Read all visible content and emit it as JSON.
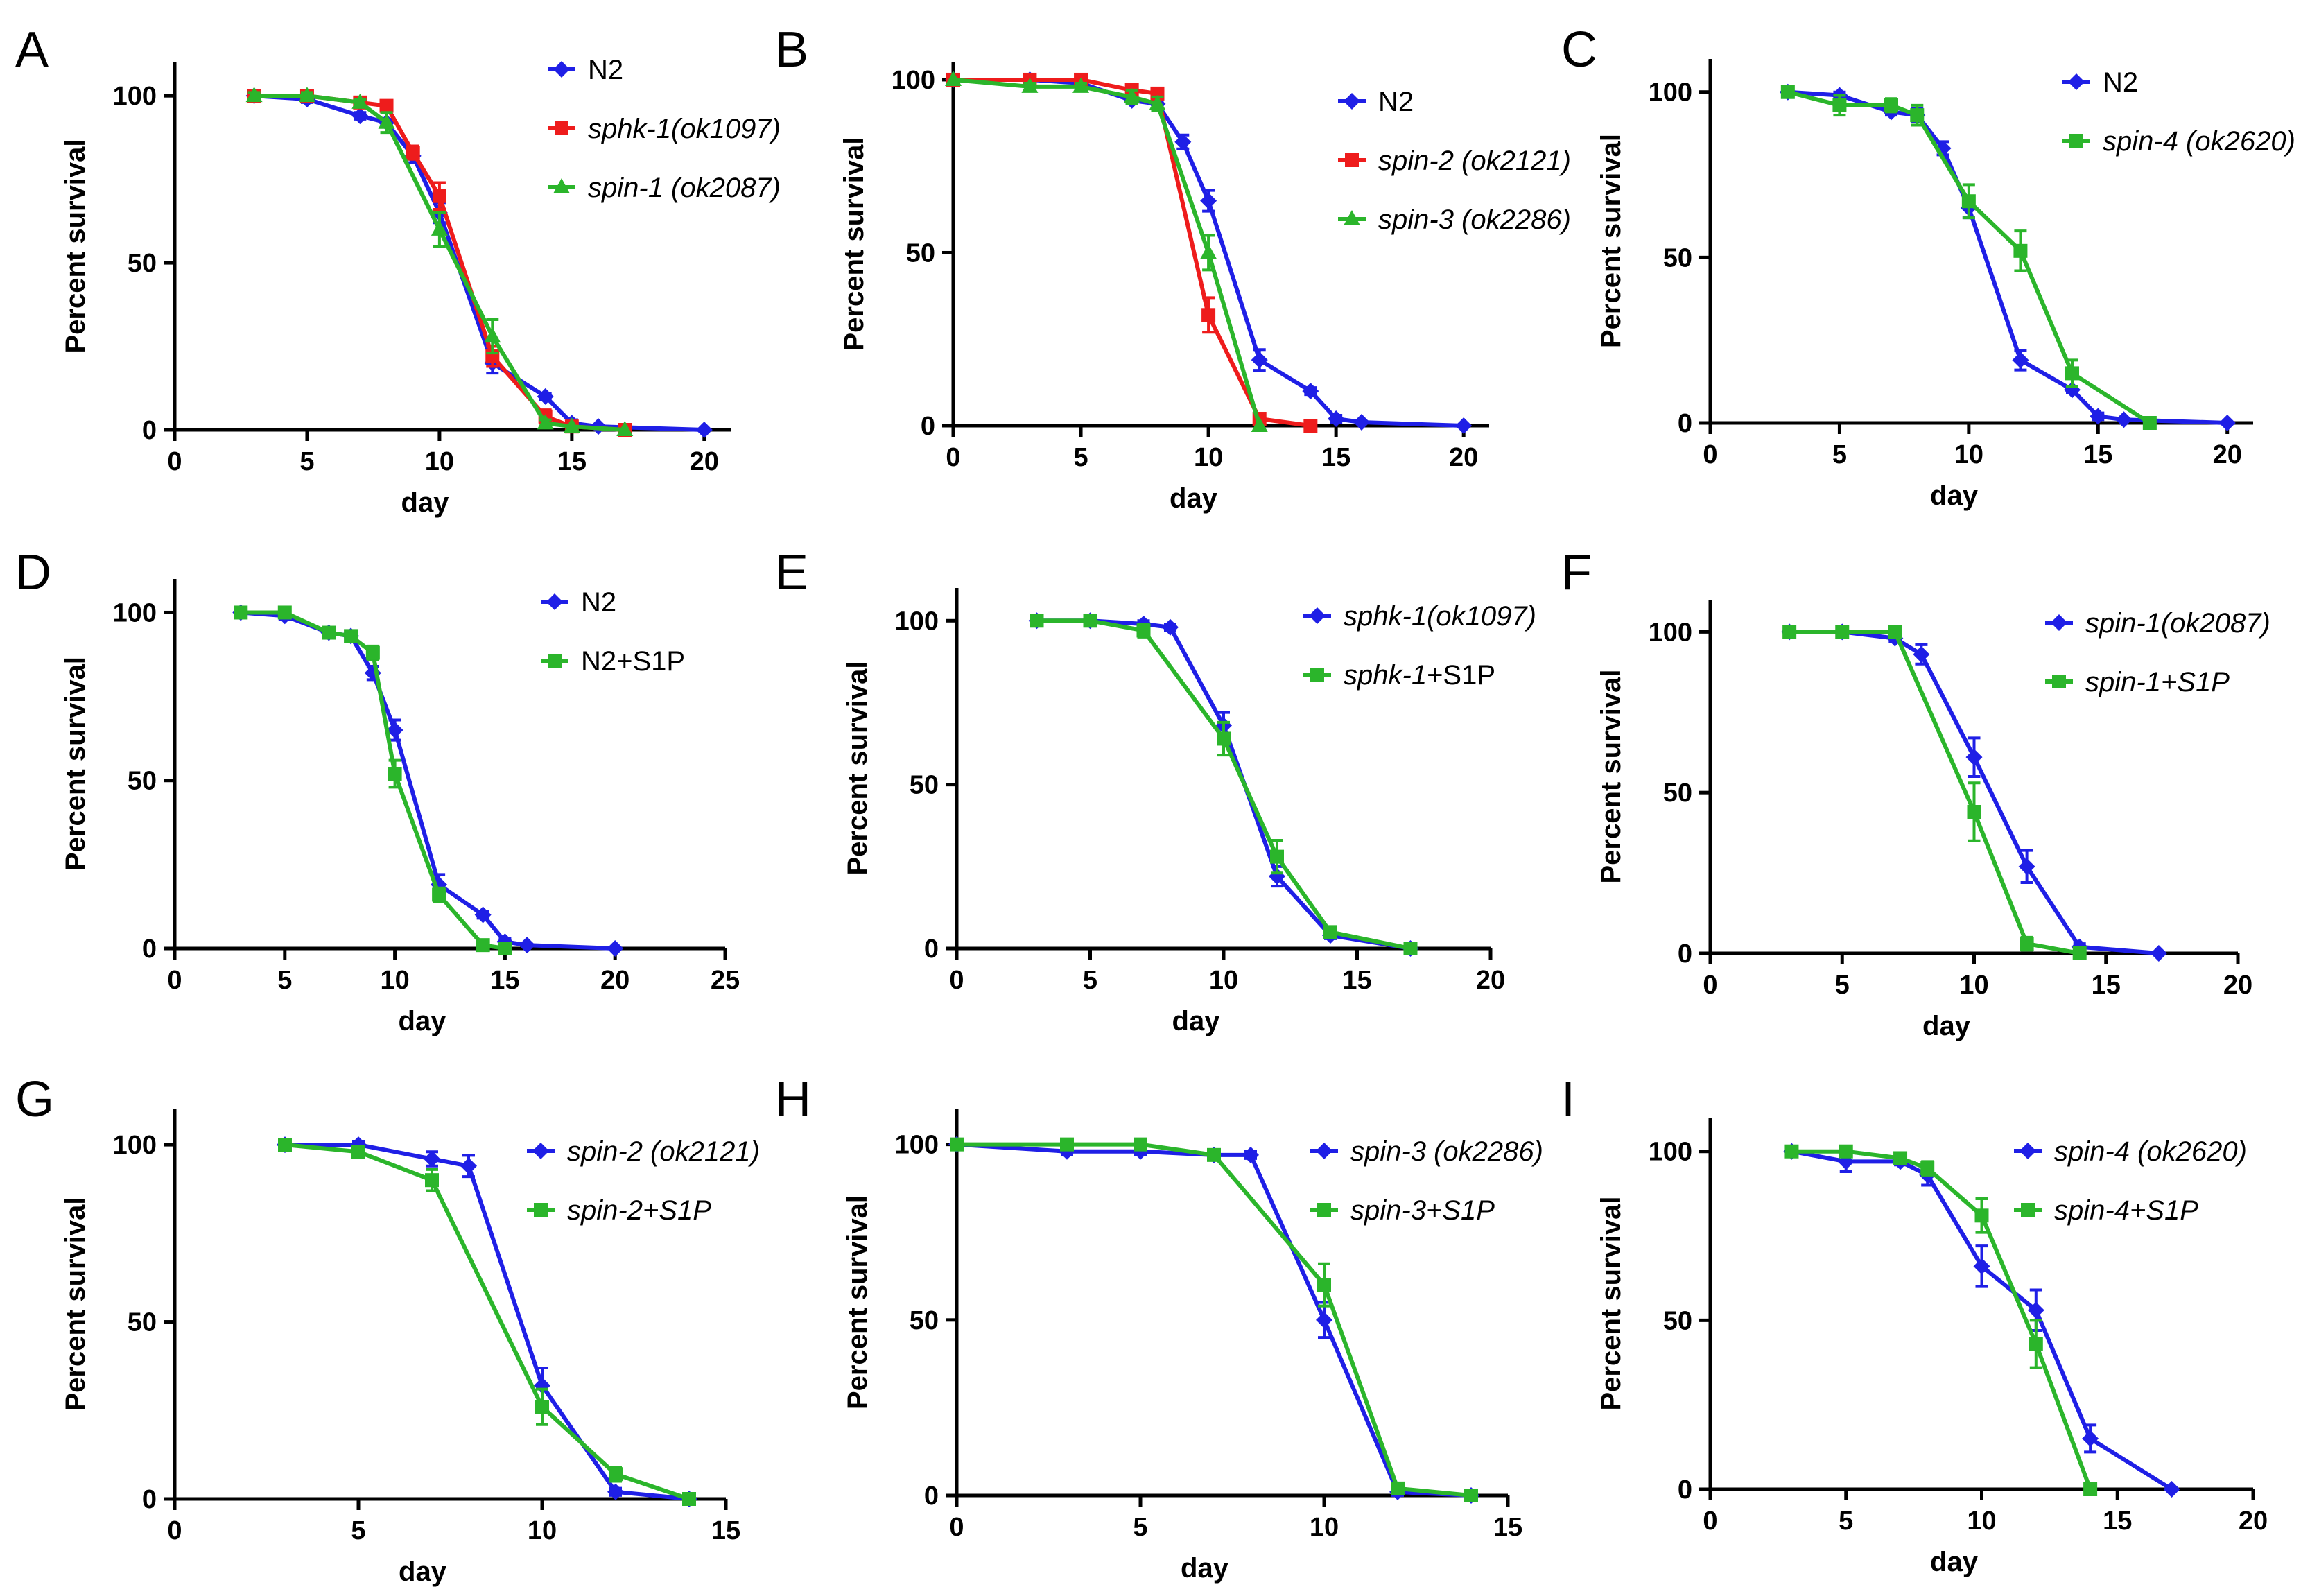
{
  "figure": {
    "colors": {
      "blue": "#1f1fe6",
      "red": "#ee1c1c",
      "green": "#2bb52b",
      "axis": "#000000"
    }
  },
  "chart_data": [
    {
      "panel": "A",
      "type": "line",
      "title": "",
      "xlabel": "day",
      "ylabel": "Percent survival",
      "xlim": [
        0,
        21
      ],
      "ylim": [
        0,
        110
      ],
      "xticks": [
        0,
        5,
        10,
        15,
        20
      ],
      "yticks": [
        0,
        50,
        100
      ],
      "series": [
        {
          "name": "N2",
          "italic": false,
          "color": "blue",
          "marker": "diamond",
          "x": [
            3,
            5,
            7,
            8,
            9,
            10,
            12,
            14,
            15,
            16,
            20
          ],
          "y": [
            100,
            99,
            94,
            92,
            82,
            65,
            20,
            10,
            2,
            1,
            0
          ],
          "err": [
            1,
            1,
            1,
            1,
            2,
            3,
            3,
            1,
            1,
            0,
            0
          ]
        },
        {
          "name": "sphk-1(ok1097)",
          "italic": true,
          "color": "red",
          "marker": "square",
          "x": [
            3,
            5,
            7,
            8,
            9,
            10,
            12,
            14,
            15,
            17
          ],
          "y": [
            100,
            100,
            98,
            97,
            83,
            70,
            22,
            4,
            1,
            0
          ],
          "err": [
            1,
            1,
            1,
            1,
            2,
            4,
            3,
            2,
            1,
            0
          ]
        },
        {
          "name": "spin-1 (ok2087)",
          "italic": true,
          "color": "green",
          "marker": "triangle",
          "x": [
            3,
            5,
            7,
            8,
            10,
            12,
            14,
            15,
            17
          ],
          "y": [
            100,
            100,
            98,
            92,
            60,
            28,
            2,
            1,
            0
          ],
          "err": [
            1,
            1,
            1,
            3,
            5,
            5,
            1,
            0,
            0
          ]
        }
      ]
    },
    {
      "panel": "B",
      "type": "line",
      "title": "",
      "xlabel": "day",
      "ylabel": "Percent survival",
      "xlim": [
        0,
        21
      ],
      "ylim": [
        0,
        105
      ],
      "xticks": [
        0,
        5,
        10,
        15,
        20
      ],
      "yticks": [
        0,
        50,
        100
      ],
      "series": [
        {
          "name": "N2",
          "italic": false,
          "color": "blue",
          "marker": "diamond",
          "x": [
            0,
            3,
            5,
            7,
            8,
            9,
            10,
            12,
            14,
            15,
            16,
            20
          ],
          "y": [
            100,
            100,
            99,
            94,
            93,
            82,
            65,
            19,
            10,
            2,
            1,
            0
          ],
          "err": [
            0,
            1,
            1,
            1,
            1,
            2,
            3,
            3,
            1,
            1,
            0,
            0
          ]
        },
        {
          "name": "spin-2 (ok2121)",
          "italic": true,
          "color": "red",
          "marker": "square",
          "x": [
            0,
            3,
            5,
            7,
            8,
            10,
            12,
            14
          ],
          "y": [
            100,
            100,
            100,
            97,
            96,
            32,
            2,
            0
          ],
          "err": [
            0,
            1,
            1,
            1,
            1,
            5,
            1,
            0
          ]
        },
        {
          "name": "spin-3 (ok2286)",
          "italic": true,
          "color": "green",
          "marker": "triangle",
          "x": [
            0,
            3,
            5,
            7,
            8,
            10,
            12
          ],
          "y": [
            100,
            98,
            98,
            95,
            93,
            50,
            0
          ],
          "err": [
            0,
            1,
            1,
            2,
            2,
            5,
            0
          ]
        }
      ]
    },
    {
      "panel": "C",
      "type": "line",
      "title": "",
      "xlabel": "day",
      "ylabel": "Percent survival",
      "xlim": [
        0,
        21
      ],
      "ylim": [
        0,
        110
      ],
      "xticks": [
        0,
        5,
        10,
        15,
        20
      ],
      "yticks": [
        0,
        50,
        100
      ],
      "series": [
        {
          "name": "N2",
          "italic": false,
          "color": "blue",
          "marker": "diamond",
          "x": [
            3,
            5,
            7,
            8,
            9,
            10,
            12,
            14,
            15,
            16,
            20
          ],
          "y": [
            100,
            99,
            94,
            93,
            83,
            65,
            19,
            10,
            2,
            1,
            0
          ],
          "err": [
            1,
            1,
            1,
            2,
            2,
            3,
            3,
            1,
            1,
            0,
            0
          ]
        },
        {
          "name": "spin-4 (ok2620)",
          "italic": true,
          "color": "green",
          "marker": "square",
          "x": [
            3,
            5,
            7,
            8,
            10,
            12,
            14,
            17
          ],
          "y": [
            100,
            96,
            96,
            93,
            67,
            52,
            15,
            0
          ],
          "err": [
            1,
            3,
            2,
            3,
            5,
            6,
            4,
            0
          ]
        }
      ]
    },
    {
      "panel": "D",
      "type": "line",
      "title": "",
      "xlabel": "day",
      "ylabel": "Percent survival",
      "xlim": [
        0,
        25
      ],
      "ylim": [
        0,
        110
      ],
      "xticks": [
        0,
        5,
        10,
        15,
        20,
        25
      ],
      "yticks": [
        0,
        50,
        100
      ],
      "series": [
        {
          "name": "N2",
          "italic": false,
          "color": "blue",
          "marker": "diamond",
          "x": [
            3,
            5,
            7,
            8,
            9,
            10,
            12,
            14,
            15,
            16,
            20
          ],
          "y": [
            100,
            99,
            94,
            93,
            82,
            65,
            19,
            10,
            2,
            1,
            0
          ],
          "err": [
            1,
            1,
            1,
            1,
            2,
            3,
            3,
            1,
            1,
            0,
            0
          ]
        },
        {
          "name": "N2+S1P",
          "italic": false,
          "color": "green",
          "marker": "square",
          "x": [
            3,
            5,
            7,
            8,
            9,
            10,
            12,
            14,
            15
          ],
          "y": [
            100,
            100,
            94,
            93,
            88,
            52,
            16,
            1,
            0
          ],
          "err": [
            1,
            1,
            1,
            1,
            2,
            4,
            2,
            1,
            0
          ]
        }
      ]
    },
    {
      "panel": "E",
      "type": "line",
      "title": "",
      "xlabel": "day",
      "ylabel": "Percent survival",
      "xlim": [
        0,
        20
      ],
      "ylim": [
        0,
        110
      ],
      "xticks": [
        0,
        5,
        10,
        15,
        20
      ],
      "yticks": [
        0,
        50,
        100
      ],
      "series": [
        {
          "name": "sphk-1(ok1097)",
          "italic": true,
          "color": "blue",
          "marker": "diamond",
          "x": [
            3,
            5,
            7,
            8,
            10,
            12,
            14,
            17
          ],
          "y": [
            100,
            100,
            99,
            98,
            68,
            22,
            4,
            0
          ],
          "err": [
            1,
            1,
            1,
            1,
            4,
            3,
            1,
            0
          ]
        },
        {
          "name": "sphk-1+S1P",
          "italic": true,
          "italic_prefix": "sphk-1",
          "suffix": "+S1P",
          "color": "green",
          "marker": "square",
          "x": [
            3,
            5,
            7,
            10,
            12,
            14,
            17
          ],
          "y": [
            100,
            100,
            97,
            64,
            28,
            5,
            0
          ],
          "err": [
            1,
            1,
            2,
            5,
            5,
            1,
            0
          ]
        }
      ]
    },
    {
      "panel": "F",
      "type": "line",
      "title": "",
      "xlabel": "day",
      "ylabel": "Percent survival",
      "xlim": [
        0,
        20
      ],
      "ylim": [
        0,
        110
      ],
      "xticks": [
        0,
        5,
        10,
        15,
        20
      ],
      "yticks": [
        0,
        50,
        100
      ],
      "series": [
        {
          "name": "spin-1(ok2087)",
          "italic": true,
          "color": "blue",
          "marker": "diamond",
          "x": [
            3,
            5,
            7,
            8,
            10,
            12,
            14,
            17
          ],
          "y": [
            100,
            100,
            98,
            93,
            61,
            27,
            2,
            0
          ],
          "err": [
            1,
            1,
            1,
            3,
            6,
            5,
            1,
            0
          ]
        },
        {
          "name": "spin-1+S1P",
          "italic": true,
          "color": "green",
          "marker": "square",
          "x": [
            3,
            5,
            7,
            10,
            12,
            14
          ],
          "y": [
            100,
            100,
            100,
            44,
            3,
            0
          ],
          "err": [
            1,
            1,
            1,
            9,
            2,
            0
          ]
        }
      ]
    },
    {
      "panel": "G",
      "type": "line",
      "title": "",
      "xlabel": "day",
      "ylabel": "Percent survival",
      "xlim": [
        0,
        15
      ],
      "ylim": [
        0,
        110
      ],
      "xticks": [
        0,
        5,
        10,
        15
      ],
      "yticks": [
        0,
        50,
        100
      ],
      "series": [
        {
          "name": "spin-2 (ok2121)",
          "italic": true,
          "color": "blue",
          "marker": "diamond",
          "x": [
            3,
            5,
            7,
            8,
            10,
            12,
            14
          ],
          "y": [
            100,
            100,
            96,
            94,
            32,
            2,
            0
          ],
          "err": [
            1,
            1,
            2,
            3,
            5,
            1,
            0
          ]
        },
        {
          "name": "spin-2+S1P",
          "italic": true,
          "color": "green",
          "marker": "square",
          "x": [
            3,
            5,
            7,
            10,
            12,
            14
          ],
          "y": [
            100,
            98,
            90,
            26,
            7,
            0
          ],
          "err": [
            1,
            1,
            3,
            5,
            2,
            0
          ]
        }
      ]
    },
    {
      "panel": "H",
      "type": "line",
      "title": "",
      "xlabel": "day",
      "ylabel": "Percent survival",
      "xlim": [
        0,
        15
      ],
      "ylim": [
        0,
        110
      ],
      "xticks": [
        0,
        5,
        10,
        15
      ],
      "yticks": [
        0,
        50,
        100
      ],
      "series": [
        {
          "name": "spin-3 (ok2286)",
          "italic": true,
          "color": "blue",
          "marker": "diamond",
          "x": [
            0,
            3,
            5,
            7,
            8,
            10,
            12,
            14
          ],
          "y": [
            100,
            98,
            98,
            97,
            97,
            50,
            1,
            0
          ],
          "err": [
            0,
            1,
            1,
            1,
            1,
            5,
            1,
            0
          ]
        },
        {
          "name": "spin-3+S1P",
          "italic": true,
          "color": "green",
          "marker": "square",
          "x": [
            0,
            3,
            5,
            7,
            10,
            12,
            14
          ],
          "y": [
            100,
            100,
            100,
            97,
            60,
            2,
            0
          ],
          "err": [
            0,
            1,
            1,
            1,
            6,
            1,
            0
          ]
        }
      ]
    },
    {
      "panel": "I",
      "type": "line",
      "title": "",
      "xlabel": "day",
      "ylabel": "Percent survival",
      "xlim": [
        0,
        20
      ],
      "ylim": [
        0,
        110
      ],
      "xticks": [
        0,
        5,
        10,
        15,
        20
      ],
      "yticks": [
        0,
        50,
        100
      ],
      "series": [
        {
          "name": "spin-4 (ok2620)",
          "italic": true,
          "color": "blue",
          "marker": "diamond",
          "x": [
            3,
            5,
            7,
            8,
            10,
            12,
            14,
            17
          ],
          "y": [
            100,
            97,
            97,
            93,
            66,
            53,
            15,
            0
          ],
          "err": [
            1,
            3,
            1,
            3,
            6,
            6,
            4,
            0
          ]
        },
        {
          "name": "spin-4+S1P",
          "italic": true,
          "color": "green",
          "marker": "square",
          "x": [
            3,
            5,
            7,
            8,
            10,
            12,
            14
          ],
          "y": [
            100,
            100,
            98,
            95,
            81,
            43,
            0
          ],
          "err": [
            1,
            1,
            1,
            2,
            5,
            7,
            0
          ]
        }
      ]
    }
  ]
}
